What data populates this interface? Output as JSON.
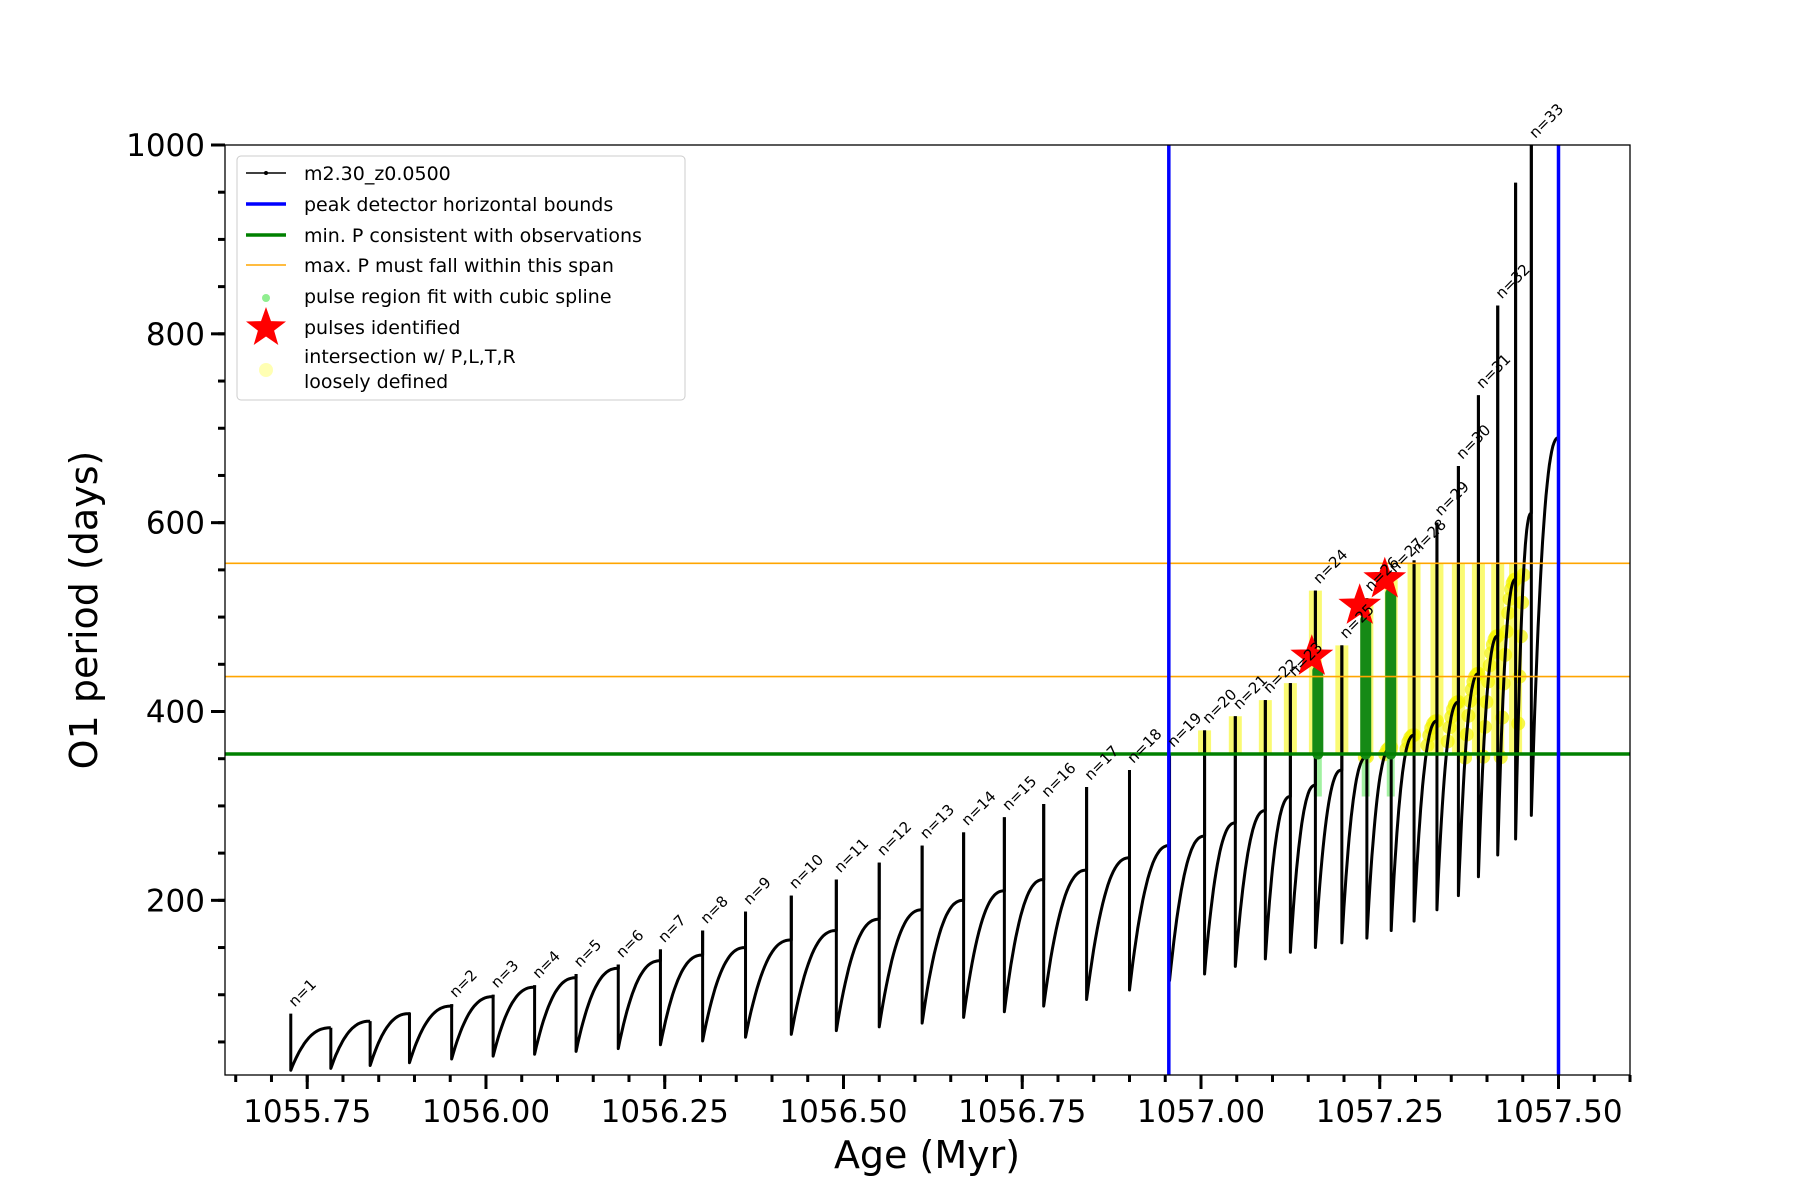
{
  "chart_data": {
    "type": "line",
    "xlabel": "Age (Myr)",
    "ylabel": "O1 period (days)",
    "xlim": [
      1055.635,
      1057.6
    ],
    "ylim": [
      15,
      1000
    ],
    "x_ticks": [
      {
        "value": 1055.75,
        "label": "1055.75"
      },
      {
        "value": 1056.0,
        "label": "1056.00"
      },
      {
        "value": 1056.25,
        "label": "1056.25"
      },
      {
        "value": 1056.5,
        "label": "1056.50"
      },
      {
        "value": 1056.75,
        "label": "1056.75"
      },
      {
        "value": 1057.0,
        "label": "1057.00"
      },
      {
        "value": 1057.25,
        "label": "1057.25"
      },
      {
        "value": 1057.5,
        "label": "1057.50"
      }
    ],
    "y_ticks": [
      {
        "value": 200,
        "label": "200"
      },
      {
        "value": 400,
        "label": "400"
      },
      {
        "value": 600,
        "label": "600"
      },
      {
        "value": 800,
        "label": "800"
      },
      {
        "value": 1000,
        "label": "1000"
      }
    ],
    "legend": {
      "position": "upper-left",
      "entries": [
        {
          "label": "m2.30_z0.0500",
          "style": "black-line-marker"
        },
        {
          "label": "peak detector horizontal bounds",
          "style": "blue-line"
        },
        {
          "label": "min. P consistent with observations",
          "style": "green-line"
        },
        {
          "label": "max. P must fall within this span",
          "style": "orange-line"
        },
        {
          "label": "pulse region fit with cubic spline",
          "style": "lightgreen-dot"
        },
        {
          "label": "pulses identified",
          "style": "red-star"
        },
        {
          "label": "intersection w/ P,L,T,R",
          "label2": "loosely defined",
          "style": "yellow-dot"
        }
      ]
    },
    "reference_lines": {
      "vertical_blue": [
        1056.955,
        1057.5
      ],
      "horizontal_green": 355,
      "horizontal_orange": [
        437,
        557
      ]
    },
    "pulses": [
      {
        "n": "n=1",
        "x": 1055.727,
        "peak": 80,
        "min": 20,
        "end": 65
      },
      {
        "n": "",
        "x": 1055.783,
        "peak": 65,
        "min": 22,
        "end": 72
      },
      {
        "n": "",
        "x": 1055.838,
        "peak": 72,
        "min": 25,
        "end": 80
      },
      {
        "n": "",
        "x": 1055.893,
        "peak": 80,
        "min": 28,
        "end": 88
      },
      {
        "n": "n=2",
        "x": 1055.952,
        "peak": 90,
        "min": 32,
        "end": 98
      },
      {
        "n": "n=3",
        "x": 1056.01,
        "peak": 100,
        "min": 35,
        "end": 108
      },
      {
        "n": "n=4",
        "x": 1056.068,
        "peak": 110,
        "min": 37,
        "end": 118
      },
      {
        "n": "n=5",
        "x": 1056.126,
        "peak": 122,
        "min": 40,
        "end": 128
      },
      {
        "n": "n=6",
        "x": 1056.185,
        "peak": 132,
        "min": 43,
        "end": 136
      },
      {
        "n": "n=7",
        "x": 1056.244,
        "peak": 148,
        "min": 47,
        "end": 142
      },
      {
        "n": "n=8",
        "x": 1056.303,
        "peak": 168,
        "min": 51,
        "end": 150
      },
      {
        "n": "n=9",
        "x": 1056.363,
        "peak": 188,
        "min": 55,
        "end": 158
      },
      {
        "n": "n=10",
        "x": 1056.427,
        "peak": 205,
        "min": 58,
        "end": 168
      },
      {
        "n": "n=11",
        "x": 1056.49,
        "peak": 222,
        "min": 62,
        "end": 180
      },
      {
        "n": "n=12",
        "x": 1056.55,
        "peak": 240,
        "min": 66,
        "end": 190
      },
      {
        "n": "n=13",
        "x": 1056.61,
        "peak": 258,
        "min": 70,
        "end": 200
      },
      {
        "n": "n=14",
        "x": 1056.668,
        "peak": 272,
        "min": 76,
        "end": 210
      },
      {
        "n": "n=15",
        "x": 1056.725,
        "peak": 288,
        "min": 82,
        "end": 222
      },
      {
        "n": "n=16",
        "x": 1056.78,
        "peak": 302,
        "min": 88,
        "end": 232
      },
      {
        "n": "n=17",
        "x": 1056.84,
        "peak": 320,
        "min": 95,
        "end": 245
      },
      {
        "n": "n=18",
        "x": 1056.9,
        "peak": 338,
        "min": 105,
        "end": 258
      },
      {
        "n": "n=19",
        "x": 1056.956,
        "peak": 355,
        "min": 115,
        "end": 268
      },
      {
        "n": "n=20",
        "x": 1057.005,
        "peak": 380,
        "min": 122,
        "end": 282
      },
      {
        "n": "n=21",
        "x": 1057.048,
        "peak": 395,
        "min": 130,
        "end": 295
      },
      {
        "n": "n=22",
        "x": 1057.09,
        "peak": 412,
        "min": 138,
        "end": 310
      },
      {
        "n": "n=23",
        "x": 1057.125,
        "peak": 430,
        "min": 145,
        "end": 322
      },
      {
        "n": "n=24",
        "x": 1057.16,
        "peak": 528,
        "min": 150,
        "end": 338
      },
      {
        "n": "n=25",
        "x": 1057.197,
        "peak": 470,
        "min": 155,
        "end": 352
      },
      {
        "n": "n=26",
        "x": 1057.232,
        "peak": 520,
        "min": 160,
        "end": 362
      },
      {
        "n": "n=27",
        "x": 1057.266,
        "peak": 540,
        "min": 168,
        "end": 375
      },
      {
        "n": "n=28",
        "x": 1057.298,
        "peak": 560,
        "min": 178,
        "end": 390
      },
      {
        "n": "n=29",
        "x": 1057.33,
        "peak": 600,
        "min": 190,
        "end": 410
      },
      {
        "n": "n=30",
        "x": 1057.36,
        "peak": 660,
        "min": 205,
        "end": 440
      },
      {
        "n": "n=31",
        "x": 1057.388,
        "peak": 735,
        "min": 225,
        "end": 480
      },
      {
        "n": "n=32",
        "x": 1057.415,
        "peak": 830,
        "min": 248,
        "end": 540
      },
      {
        "n": "",
        "x": 1057.44,
        "peak": 960,
        "min": 265,
        "end": 610
      },
      {
        "n": "n=33",
        "x": 1057.462,
        "peak": 1000,
        "min": 290,
        "end": 690
      }
    ],
    "pulses_identified": [
      {
        "x": 1057.155,
        "y": 458
      },
      {
        "x": 1057.222,
        "y": 512
      },
      {
        "x": 1057.257,
        "y": 540
      }
    ]
  }
}
